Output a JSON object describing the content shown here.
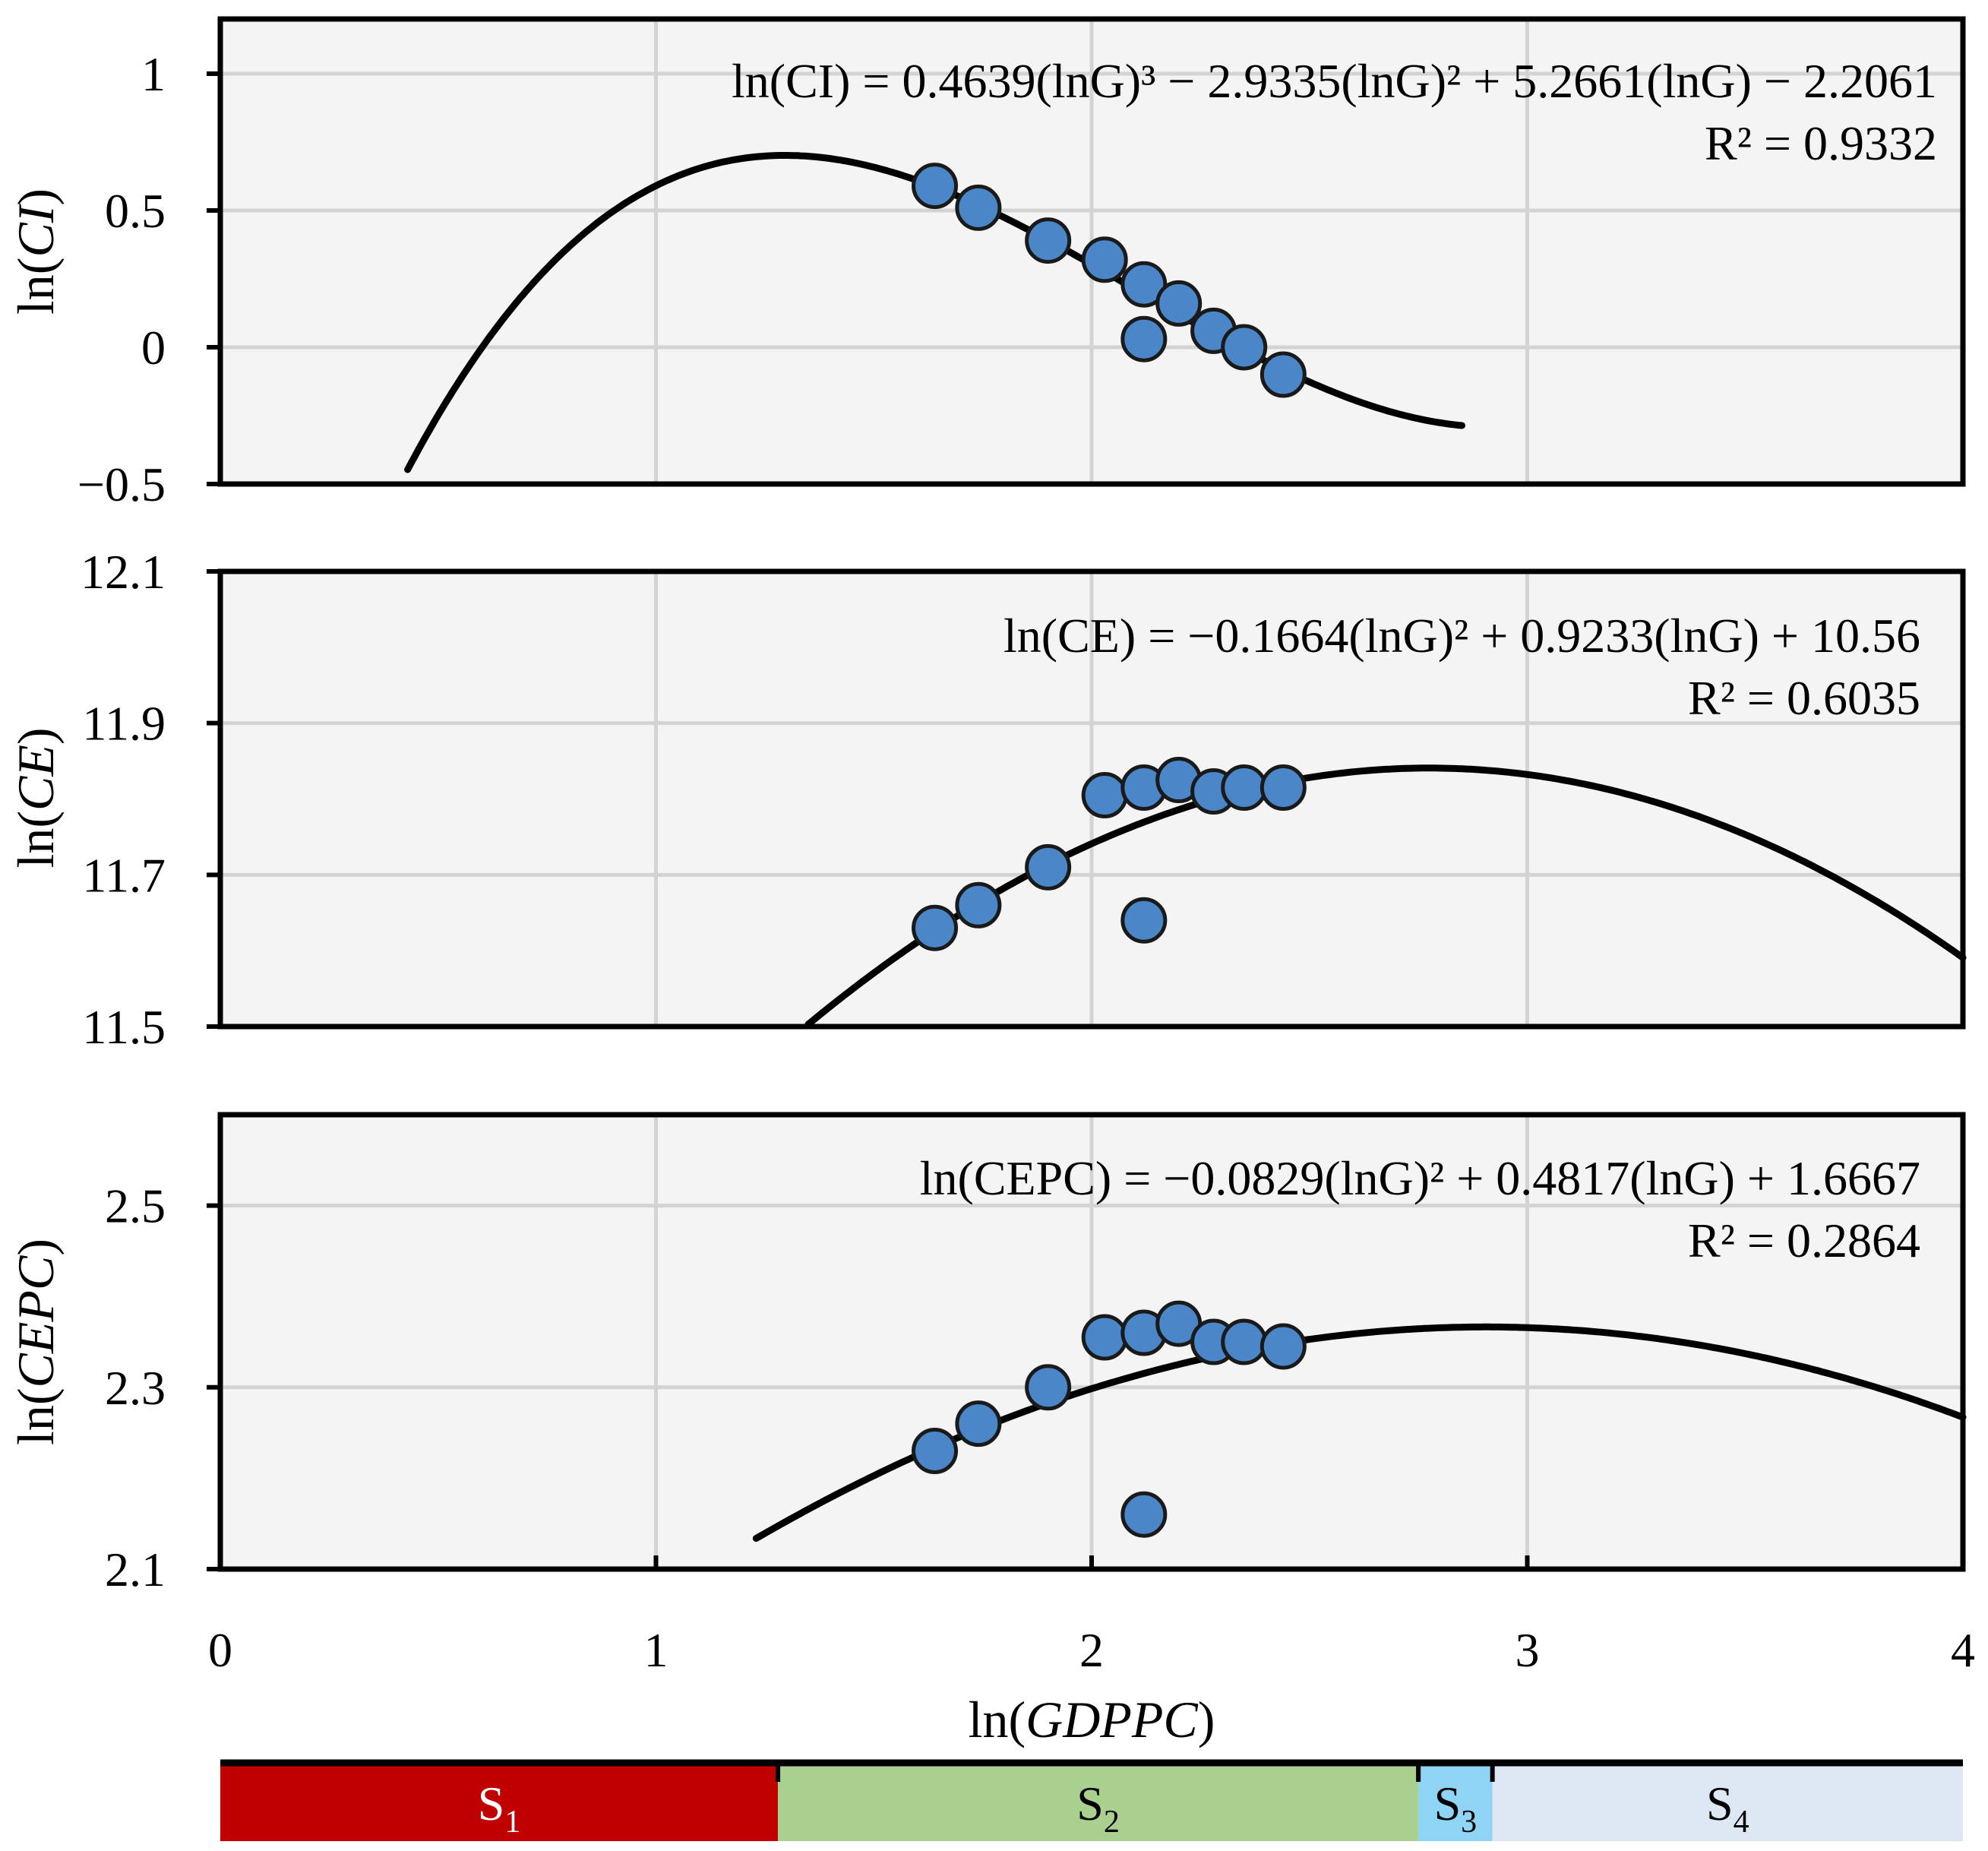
{
  "chart_data": [
    {
      "type": "scatter",
      "id": "ci",
      "ylabel": {
        "prefix": "ln(",
        "italic": "CI",
        "suffix": ")"
      },
      "ylim": [
        -0.5,
        1.2
      ],
      "yticks": [
        -0.5,
        0,
        0.5,
        1
      ],
      "ytick_labels": [
        "−0.5",
        "0",
        "0.5",
        "1"
      ],
      "grid": true,
      "equation": "ln(CI) = 0.4639(lnG)³ − 2.9335(lnG)² + 5.2661(lnG) − 2.2061",
      "r2": "R² = 0.9332",
      "fit": {
        "coeffs": [
          0.4639,
          -2.9335,
          5.2661,
          -2.2061
        ],
        "x_range": [
          0.43,
          2.85
        ]
      },
      "points": {
        "x": [
          1.64,
          1.74,
          1.9,
          2.03,
          2.12,
          2.2,
          2.28,
          2.35,
          2.44,
          2.12
        ],
        "y": [
          0.59,
          0.51,
          0.39,
          0.32,
          0.23,
          0.16,
          0.06,
          0.0,
          -0.1,
          0.03
        ]
      }
    },
    {
      "type": "scatter",
      "id": "ce",
      "ylabel": {
        "prefix": "ln(",
        "italic": "CE",
        "suffix": ")"
      },
      "ylim": [
        11.5,
        12.1
      ],
      "yticks": [
        11.5,
        11.7,
        11.9,
        12.1
      ],
      "ytick_labels": [
        "11.5",
        "11.7",
        "11.9",
        "12.1"
      ],
      "grid": true,
      "equation": "ln(CE) = −0.1664(lnG)² + 0.9233(lnG) + 10.56",
      "r2": "R² = 0.6035",
      "fit": {
        "coeffs": [
          -0.1664,
          0.9233,
          10.56
        ],
        "x_range": [
          1.2,
          4.0
        ]
      },
      "points": {
        "x": [
          1.64,
          1.74,
          1.9,
          2.03,
          2.12,
          2.2,
          2.28,
          2.35,
          2.44,
          2.12
        ],
        "y": [
          11.63,
          11.66,
          11.71,
          11.805,
          11.815,
          11.825,
          11.81,
          11.815,
          11.815,
          11.64
        ]
      }
    },
    {
      "type": "scatter",
      "id": "cepc",
      "ylabel": {
        "prefix": "ln(",
        "italic": "CEPC",
        "suffix": ")"
      },
      "ylim": [
        2.1,
        2.6
      ],
      "yticks": [
        2.1,
        2.3,
        2.5
      ],
      "ytick_labels": [
        "2.1",
        "2.3",
        "2.5"
      ],
      "grid": true,
      "equation": "ln(CEPC) = −0.0829(lnG)² + 0.4817(lnG) + 1.6667",
      "r2": "R² = 0.2864",
      "fit": {
        "coeffs": [
          -0.0829,
          0.4817,
          1.6667
        ],
        "x_range": [
          1.23,
          4.0
        ]
      },
      "points": {
        "x": [
          1.64,
          1.74,
          1.9,
          2.03,
          2.12,
          2.2,
          2.28,
          2.35,
          2.44,
          2.12
        ],
        "y": [
          2.23,
          2.26,
          2.3,
          2.355,
          2.36,
          2.37,
          2.35,
          2.35,
          2.345,
          2.16
        ]
      }
    }
  ],
  "x_axis": {
    "label": {
      "prefix": "ln(",
      "italic": "GDPPC",
      "suffix": ")"
    },
    "xlim": [
      0,
      4
    ],
    "ticks": [
      0,
      1,
      2,
      3,
      4
    ],
    "tick_labels": [
      "0",
      "1",
      "2",
      "3",
      "4"
    ]
  },
  "stages": [
    {
      "base": "S",
      "sub": "1",
      "start": 0.0,
      "end": 1.28,
      "color": "#c00000"
    },
    {
      "base": "S",
      "sub": "2",
      "start": 1.28,
      "end": 2.75,
      "color": "#a9d08e"
    },
    {
      "base": "S",
      "sub": "3",
      "start": 2.75,
      "end": 2.92,
      "color": "#8fd3f5"
    },
    {
      "base": "S",
      "sub": "4",
      "start": 2.92,
      "end": 4.0,
      "color": "#dde8f4"
    }
  ],
  "colors": {
    "marker": "#4a86c8",
    "panel": "#f4f4f4",
    "grid": "#d3d3d3"
  }
}
